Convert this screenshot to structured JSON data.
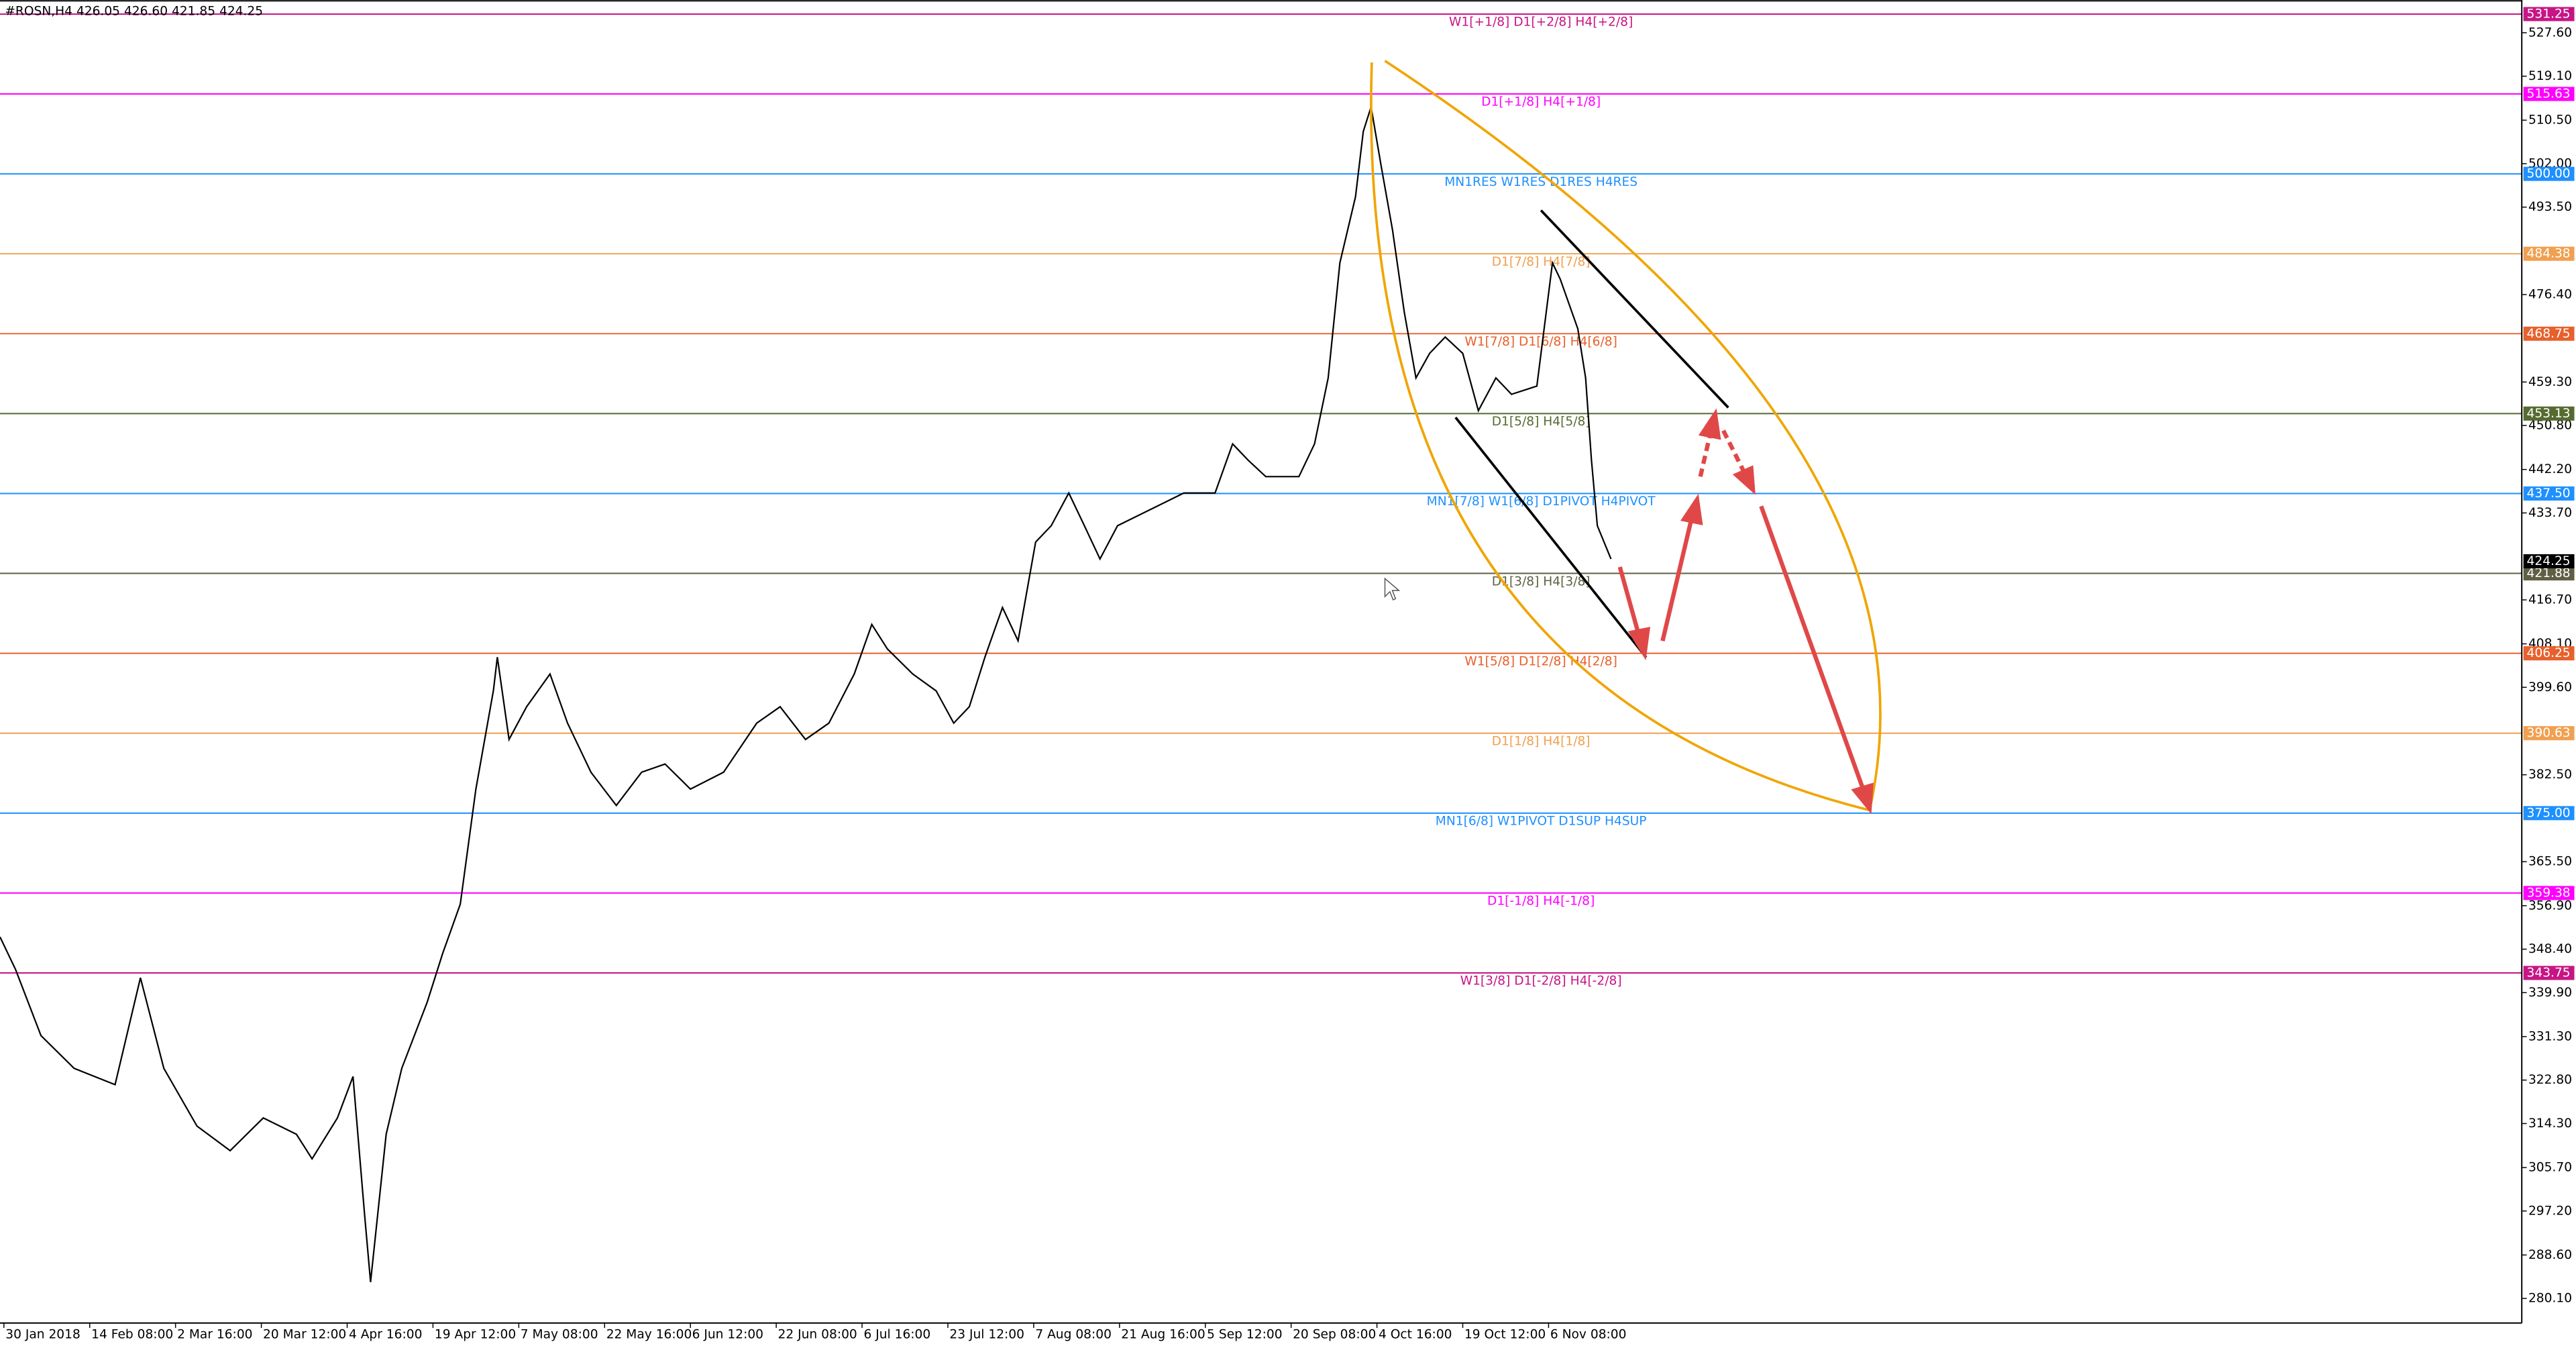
{
  "chart_data": {
    "type": "line",
    "header": "#ROSN,H4  426.05 426.60 421.85 424.25",
    "color": "#000000",
    "x": [
      0,
      8,
      21,
      38,
      59,
      72,
      84,
      101,
      118,
      135,
      152,
      160,
      173,
      181,
      187,
      190,
      198,
      206,
      219,
      227,
      236,
      244,
      253,
      255,
      261,
      270,
      282,
      291,
      303,
      316,
      329,
      341,
      354,
      371,
      388,
      400,
      413,
      425,
      438,
      447,
      455,
      468,
      480,
      489,
      497,
      505,
      514,
      522,
      531,
      539,
      548,
      556,
      564,
      573,
      590,
      607,
      623,
      632,
      640,
      649,
      666,
      674,
      681,
      687,
      695,
      699,
      703,
      708,
      714,
      720,
      726,
      733,
      741,
      750,
      758,
      767,
      775,
      788,
      796,
      800,
      809,
      813,
      816,
      819,
      826
    ],
    "values": [
      350.8,
      344.4,
      331.5,
      325.1,
      321.9,
      342.8,
      325.1,
      313.8,
      309.0,
      315.4,
      312.2,
      307.4,
      315.4,
      323.5,
      296.2,
      283.3,
      312.2,
      325.1,
      338.0,
      347.6,
      357.2,
      379.7,
      399.0,
      405.5,
      389.4,
      395.8,
      402.2,
      392.6,
      383.0,
      376.5,
      383.0,
      384.6,
      379.7,
      383.0,
      392.6,
      395.8,
      389.4,
      392.6,
      402.2,
      411.9,
      407.1,
      402.2,
      398.9,
      392.6,
      395.8,
      405.5,
      415.2,
      408.7,
      428.0,
      431.2,
      437.6,
      431.2,
      424.7,
      431.2,
      434.4,
      437.6,
      437.6,
      447.2,
      444.0,
      440.8,
      440.8,
      447.2,
      460.1,
      482.6,
      495.5,
      508.3,
      513.1,
      501.9,
      489.0,
      473.0,
      460.1,
      464.9,
      468.1,
      464.9,
      453.7,
      460.1,
      456.9,
      458.5,
      482.6,
      479.4,
      469.7,
      460.1,
      444.0,
      431.2,
      424.7
    ],
    "xlim": [
      0,
      1293
    ],
    "ylim": [
      275.3,
      534.0
    ],
    "xticks": [
      {
        "value": 2,
        "label": "30 Jan 2018"
      },
      {
        "value": 46,
        "label": "14 Feb 08:00"
      },
      {
        "value": 90,
        "label": "2 Mar 16:00"
      },
      {
        "value": 134,
        "label": "20 Mar 12:00"
      },
      {
        "value": 178,
        "label": "4 Apr 16:00"
      },
      {
        "value": 222,
        "label": "19 Apr 12:00"
      },
      {
        "value": 266,
        "label": "7 May 08:00"
      },
      {
        "value": 310,
        "label": "22 May 16:00"
      },
      {
        "value": 354,
        "label": "6 Jun 12:00"
      },
      {
        "value": 398,
        "label": "22 Jun 08:00"
      },
      {
        "value": 442,
        "label": "6 Jul 16:00"
      },
      {
        "value": 486,
        "label": "23 Jul 12:00"
      },
      {
        "value": 530,
        "label": "7 Aug 08:00"
      },
      {
        "value": 574,
        "label": "21 Aug 16:00"
      },
      {
        "value": 618,
        "label": "5 Sep 12:00"
      },
      {
        "value": 662,
        "label": "20 Sep 08:00"
      },
      {
        "value": 706,
        "label": "4 Oct 16:00"
      },
      {
        "value": 750,
        "label": "19 Oct 12:00"
      },
      {
        "value": 794,
        "label": "6 Nov 08:00"
      }
    ],
    "yticks": [
      {
        "value": 527.6,
        "label": "527.60"
      },
      {
        "value": 519.1,
        "label": "519.10"
      },
      {
        "value": 510.5,
        "label": "510.50"
      },
      {
        "value": 502.0,
        "label": "502.00"
      },
      {
        "value": 493.5,
        "label": "493.50"
      },
      {
        "value": 476.4,
        "label": "476.40"
      },
      {
        "value": 459.3,
        "label": "459.30"
      },
      {
        "value": 450.8,
        "label": "450.80"
      },
      {
        "value": 442.2,
        "label": "442.20"
      },
      {
        "value": 433.7,
        "label": "433.70"
      },
      {
        "value": 416.7,
        "label": "416.70"
      },
      {
        "value": 408.1,
        "label": "408.10"
      },
      {
        "value": 399.6,
        "label": "399.60"
      },
      {
        "value": 382.5,
        "label": "382.50"
      },
      {
        "value": 365.5,
        "label": "365.50"
      },
      {
        "value": 356.9,
        "label": "356.90"
      },
      {
        "value": 348.4,
        "label": "348.40"
      },
      {
        "value": 339.9,
        "label": "339.90"
      },
      {
        "value": 331.3,
        "label": "331.30"
      },
      {
        "value": 322.8,
        "label": "322.80"
      },
      {
        "value": 314.3,
        "label": "314.30"
      },
      {
        "value": 305.7,
        "label": "305.70"
      },
      {
        "value": 297.2,
        "label": "297.20"
      },
      {
        "value": 288.6,
        "label": "288.60"
      },
      {
        "value": 280.1,
        "label": "280.10"
      }
    ],
    "levels": [
      {
        "value": 531.25,
        "label": "531.25",
        "text": "W1[+1/8] D1[+2/8] H4[+2/8]",
        "color": "#c71585"
      },
      {
        "value": 515.63,
        "label": "515.63",
        "text": "D1[+1/8] H4[+1/8]",
        "color": "#ff00ff"
      },
      {
        "value": 500.0,
        "label": "500.00",
        "text": "MN1RES W1RES D1RES H4RES",
        "color": "#1e90ff"
      },
      {
        "value": 484.38,
        "label": "484.38",
        "text": "D1[7/8] H4[7/8]",
        "color": "#f0a050"
      },
      {
        "value": 468.75,
        "label": "468.75",
        "text": "W1[7/8] D1[6/8] H4[6/8]",
        "color": "#e8602c"
      },
      {
        "value": 453.13,
        "label": "453.13",
        "text": "D1[5/8] H4[5/8]",
        "color": "#556b2f"
      },
      {
        "value": 437.5,
        "label": "437.50",
        "text": "MN1[7/8] W1[6/8] D1PIVOT H4PIVOT",
        "color": "#1e90ff"
      },
      {
        "value": 421.88,
        "label": "421.88",
        "text": "D1[3/8] H4[3/8]",
        "color": "#5f5f45"
      },
      {
        "value": 406.25,
        "label": "406.25",
        "text": "W1[5/8] D1[2/8] H4[2/8]",
        "color": "#e8602c"
      },
      {
        "value": 390.63,
        "label": "390.63",
        "text": "D1[1/8] H4[1/8]",
        "color": "#f0a050"
      },
      {
        "value": 375.0,
        "label": "375.00",
        "text": "MN1[6/8] W1PIVOT D1SUP H4SUP",
        "color": "#1e90ff"
      },
      {
        "value": 359.38,
        "label": "359.38",
        "text": "D1[-1/8] H4[-1/8]",
        "color": "#ff00ff"
      },
      {
        "value": 343.75,
        "label": "343.75",
        "text": "W1[3/8] D1[-2/8] H4[-2/8]",
        "color": "#c71585"
      }
    ],
    "current": {
      "value": 424.25,
      "label": "424.25",
      "color": "#000000"
    }
  }
}
